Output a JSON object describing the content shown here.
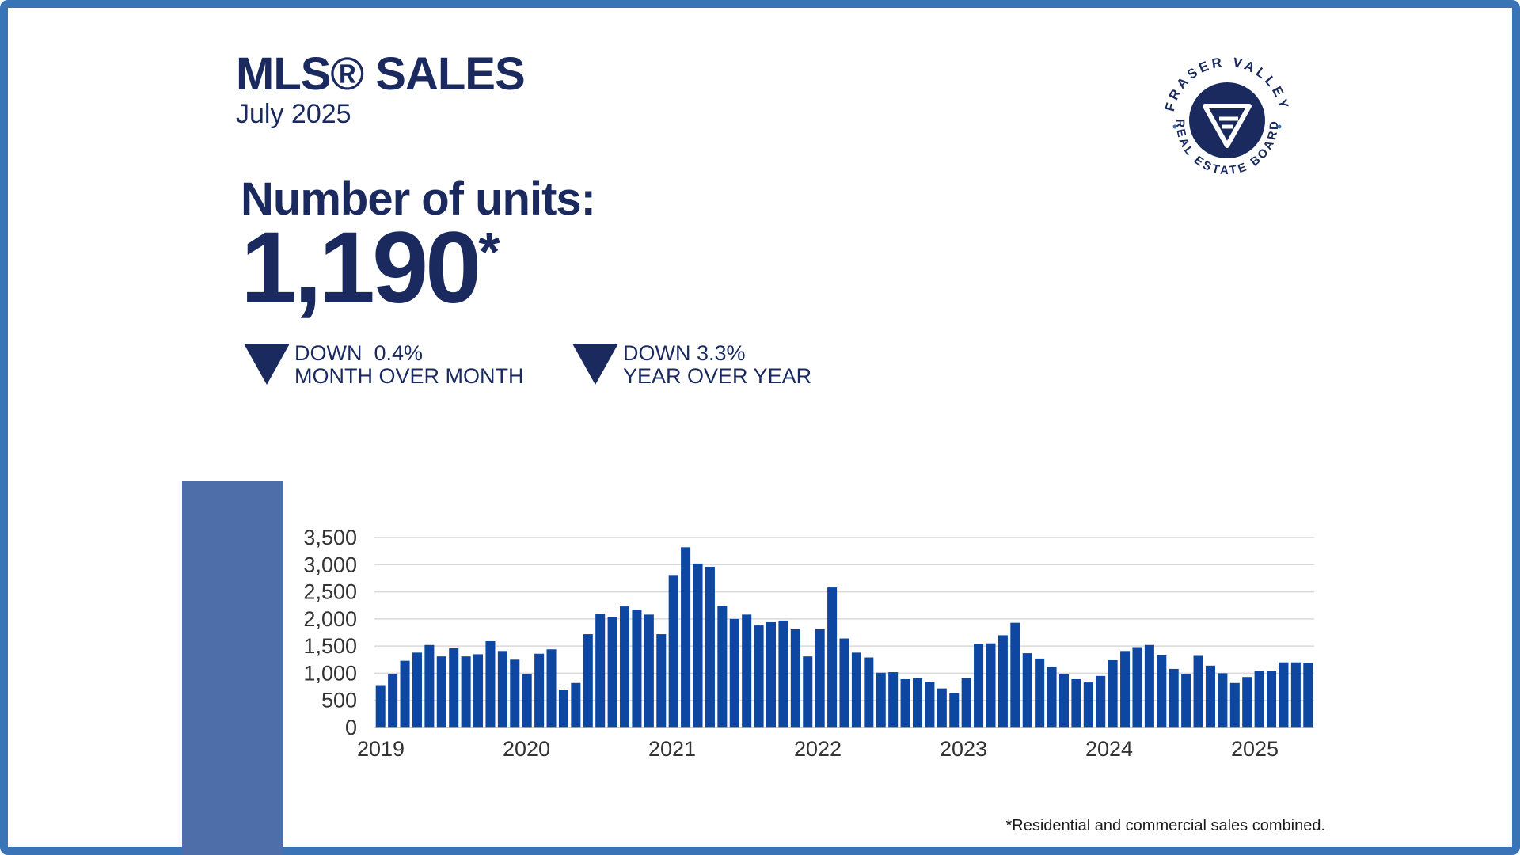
{
  "header": {
    "title": "MLS® SALES",
    "subtitle": "July 2025"
  },
  "summary": {
    "label": "Number of units:",
    "value": "1,190",
    "asterisk": "*",
    "mom": {
      "direction": "DOWN",
      "percent": "0.4%",
      "period": "MONTH OVER MONTH"
    },
    "yoy": {
      "direction": "DOWN",
      "percent": "3.3%",
      "period": "YEAR OVER YEAR"
    }
  },
  "logo": {
    "top_text": "FRASER VALLEY",
    "bottom_text": "REAL ESTATE BOARD"
  },
  "footnote": "*Residential and commercial sales combined.",
  "colors": {
    "navy": "#1b2a5e",
    "bar": "#0d47a1",
    "frame": "#3a73b6",
    "side_bar": "#4d6ea8"
  },
  "chart_data": {
    "type": "bar",
    "title": "",
    "xlabel": "",
    "ylabel": "",
    "ylim": [
      0,
      3500
    ],
    "yticks": [
      0,
      500,
      1000,
      1500,
      2000,
      2500,
      3000,
      3500
    ],
    "ytick_labels": [
      "0",
      "500",
      "1,000",
      "1,500",
      "2,000",
      "2,500",
      "3,000",
      "3,500"
    ],
    "xtick_labels": [
      "2019",
      "2020",
      "2021",
      "2022",
      "2023",
      "2024",
      "2025"
    ],
    "grid": true,
    "series": [
      {
        "values": [
          780,
          980,
          1230,
          1380,
          1520,
          1310,
          1460,
          1310,
          1350,
          1590,
          1410,
          1250,
          980,
          1360,
          1440,
          700,
          820,
          1720,
          2100,
          2040,
          2230,
          2170,
          2080,
          1720,
          2810,
          3320,
          3020,
          2960,
          2240,
          2000,
          2080,
          1880,
          1940,
          1970,
          1810,
          1310,
          1810,
          2580,
          1640,
          1380,
          1290,
          1010,
          1020,
          890,
          910,
          840,
          720,
          630,
          910,
          1540,
          1550,
          1700,
          1930,
          1370,
          1270,
          1120,
          980,
          890,
          830,
          950,
          1240,
          1410,
          1480,
          1520,
          1330,
          1080,
          990,
          1320,
          1140,
          1000,
          820,
          930,
          1040,
          1050,
          1200,
          1200,
          1190
        ]
      }
    ]
  }
}
